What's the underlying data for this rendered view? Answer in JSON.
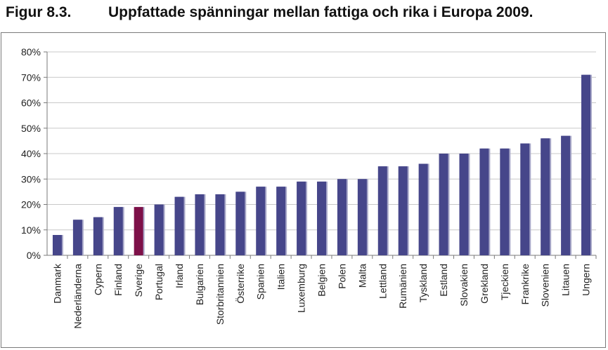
{
  "figure": {
    "label": "Figur 8.3.",
    "title": "Uppfattade spänningar mellan fattiga och rika i Europa 2009."
  },
  "colors": {
    "bar": "#46468a",
    "highlight": "#7d1048",
    "bar_shadow": "#a9a9c9",
    "grid": "#c8c8c8",
    "axis": "#7a7a7a",
    "text": "#222222"
  },
  "chart_data": {
    "type": "bar",
    "title": "Uppfattade spänningar mellan fattiga och rika i Europa 2009.",
    "xlabel": "",
    "ylabel": "",
    "ylim": [
      0,
      80
    ],
    "yticks": [
      "0%",
      "10%",
      "20%",
      "30%",
      "40%",
      "50%",
      "60%",
      "70%",
      "80%"
    ],
    "grid": true,
    "legend": "none",
    "highlighted_category": "Sverige",
    "categories": [
      "Danmark",
      "Nederländerna",
      "Cypern",
      "Finland",
      "Sverige",
      "Portugal",
      "Irland",
      "Bulgarien",
      "Storbritannien",
      "Österrike",
      "Spanien",
      "Italien",
      "Luxemburg",
      "Belgien",
      "Polen",
      "Malta",
      "Lettland",
      "Rumänien",
      "Tyskland",
      "Estland",
      "Slovakien",
      "Grekland",
      "Tjeckien",
      "Frankrike",
      "Slovenien",
      "Litauen",
      "Ungern"
    ],
    "values": [
      8,
      14,
      15,
      19,
      19,
      20,
      23,
      24,
      24,
      25,
      27,
      27,
      29,
      29,
      30,
      30,
      35,
      35,
      36,
      40,
      40,
      42,
      42,
      44,
      46,
      47,
      71
    ]
  }
}
